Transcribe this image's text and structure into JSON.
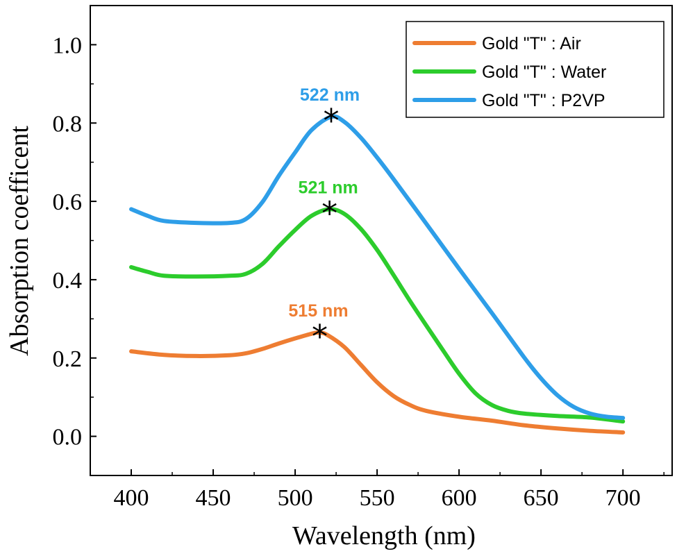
{
  "chart_data": {
    "type": "line",
    "xlabel": "Wavelength (nm)",
    "ylabel": "Absorption coefficent",
    "xlim": [
      375,
      730
    ],
    "ylim": [
      -0.1,
      1.1
    ],
    "x_ticks": [
      400,
      450,
      500,
      550,
      600,
      650,
      700
    ],
    "y_ticks": [
      0.0,
      0.2,
      0.4,
      0.6,
      0.8,
      1.0
    ],
    "x_tick_labels": [
      "400",
      "450",
      "500",
      "550",
      "600",
      "650",
      "700"
    ],
    "y_tick_labels": [
      "0.0",
      "0.2",
      "0.4",
      "0.6",
      "0.8",
      "1.0"
    ],
    "grid": false,
    "legend_position": "top-right",
    "series": [
      {
        "name": "Gold \"T\" : Air",
        "color": "#ee7d32",
        "x": [
          400,
          420,
          440,
          460,
          470,
          480,
          490,
          500,
          510,
          515,
          520,
          530,
          540,
          550,
          560,
          570,
          580,
          600,
          620,
          640,
          660,
          680,
          700
        ],
        "y": [
          0.217,
          0.208,
          0.205,
          0.207,
          0.212,
          0.223,
          0.237,
          0.25,
          0.262,
          0.265,
          0.258,
          0.228,
          0.183,
          0.138,
          0.103,
          0.08,
          0.065,
          0.05,
          0.04,
          0.028,
          0.02,
          0.014,
          0.01
        ]
      },
      {
        "name": "Gold \"T\" : Water",
        "color": "#2ccc2c",
        "x": [
          400,
          410,
          420,
          440,
          460,
          470,
          480,
          490,
          500,
          510,
          521,
          530,
          540,
          550,
          560,
          570,
          580,
          590,
          600,
          610,
          620,
          630,
          640,
          660,
          680,
          700
        ],
        "y": [
          0.432,
          0.42,
          0.41,
          0.408,
          0.41,
          0.415,
          0.44,
          0.485,
          0.527,
          0.563,
          0.58,
          0.568,
          0.53,
          0.476,
          0.412,
          0.346,
          0.283,
          0.221,
          0.16,
          0.11,
          0.08,
          0.065,
          0.058,
          0.052,
          0.048,
          0.038
        ]
      },
      {
        "name": "Gold \"T\" : P2VP",
        "color": "#2e9ee8",
        "x": [
          400,
          410,
          420,
          440,
          460,
          470,
          480,
          490,
          500,
          510,
          522,
          530,
          540,
          550,
          560,
          580,
          600,
          620,
          640,
          650,
          660,
          670,
          680,
          690,
          700
        ],
        "y": [
          0.58,
          0.563,
          0.55,
          0.545,
          0.545,
          0.555,
          0.598,
          0.665,
          0.725,
          0.782,
          0.816,
          0.803,
          0.763,
          0.712,
          0.657,
          0.543,
          0.428,
          0.315,
          0.2,
          0.148,
          0.105,
          0.075,
          0.058,
          0.05,
          0.047
        ]
      }
    ],
    "annotations": [
      {
        "text": "522 nm",
        "x": 522,
        "y": 0.816,
        "color": "#2e9ee8"
      },
      {
        "text": "521 nm",
        "x": 521,
        "y": 0.58,
        "color": "#2ccc2c"
      },
      {
        "text": "515 nm",
        "x": 515,
        "y": 0.265,
        "color": "#ee7d32"
      }
    ]
  }
}
